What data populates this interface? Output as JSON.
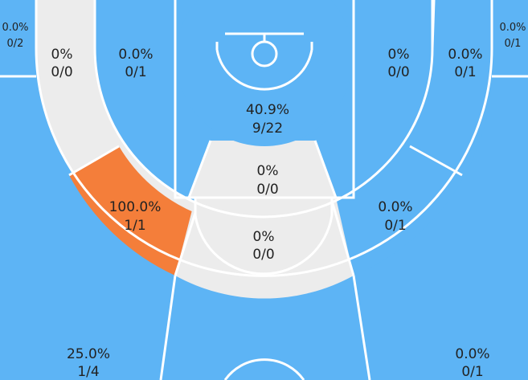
{
  "colors": {
    "hot": "#f47e3a",
    "cold": "#5db4f5",
    "neutral": "#ececec",
    "lines": "#ffffff",
    "text": "#222222"
  },
  "zones": {
    "corner_left": {
      "pct": "0.0%",
      "frac": "0/2"
    },
    "corner_right": {
      "pct": "0.0%",
      "frac": "0/1"
    },
    "wing_outer_left": {
      "pct": "0%",
      "frac": "0/0"
    },
    "wing_inner_left": {
      "pct": "0.0%",
      "frac": "0/1"
    },
    "restricted_area": {
      "pct": "40.9%",
      "frac": "9/22"
    },
    "wing_inner_right": {
      "pct": "0%",
      "frac": "0/0"
    },
    "wing_outer_right": {
      "pct": "0.0%",
      "frac": "0/1"
    },
    "paint_top": {
      "pct": "0%",
      "frac": "0/0"
    },
    "mid_left": {
      "pct": "100.0%",
      "frac": "1/1"
    },
    "mid_right": {
      "pct": "0.0%",
      "frac": "0/1"
    },
    "top_key": {
      "pct": "0%",
      "frac": "0/0"
    },
    "three_left": {
      "pct": "25.0%",
      "frac": "1/4"
    },
    "three_right": {
      "pct": "0.0%",
      "frac": "0/1"
    }
  }
}
